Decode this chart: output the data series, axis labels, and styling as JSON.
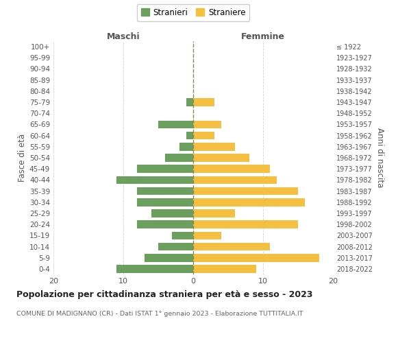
{
  "age_groups": [
    "0-4",
    "5-9",
    "10-14",
    "15-19",
    "20-24",
    "25-29",
    "30-34",
    "35-39",
    "40-44",
    "45-49",
    "50-54",
    "55-59",
    "60-64",
    "65-69",
    "70-74",
    "75-79",
    "80-84",
    "85-89",
    "90-94",
    "95-99",
    "100+"
  ],
  "birth_years": [
    "2018-2022",
    "2013-2017",
    "2008-2012",
    "2003-2007",
    "1998-2002",
    "1993-1997",
    "1988-1992",
    "1983-1987",
    "1978-1982",
    "1973-1977",
    "1968-1972",
    "1963-1967",
    "1958-1962",
    "1953-1957",
    "1948-1952",
    "1943-1947",
    "1938-1942",
    "1933-1937",
    "1928-1932",
    "1923-1927",
    "≤ 1922"
  ],
  "maschi": [
    11,
    7,
    5,
    3,
    8,
    6,
    8,
    8,
    11,
    8,
    4,
    2,
    1,
    5,
    0,
    1,
    0,
    0,
    0,
    0,
    0
  ],
  "femmine": [
    9,
    18,
    11,
    4,
    15,
    6,
    16,
    15,
    12,
    11,
    8,
    6,
    3,
    4,
    0,
    3,
    0,
    0,
    0,
    0,
    0
  ],
  "maschi_color": "#6a9f5e",
  "femmine_color": "#f5bf42",
  "background_color": "#ffffff",
  "grid_color": "#cccccc",
  "title": "Popolazione per cittadinanza straniera per età e sesso - 2023",
  "subtitle": "COMUNE DI MADIGNANO (CR) - Dati ISTAT 1° gennaio 2023 - Elaborazione TUTTITALIA.IT",
  "ylabel_left": "Fasce di età",
  "ylabel_right": "Anni di nascita",
  "header_maschi": "Maschi",
  "header_femmine": "Femmine",
  "legend_maschi": "Stranieri",
  "legend_femmine": "Straniere",
  "xlim": 20
}
